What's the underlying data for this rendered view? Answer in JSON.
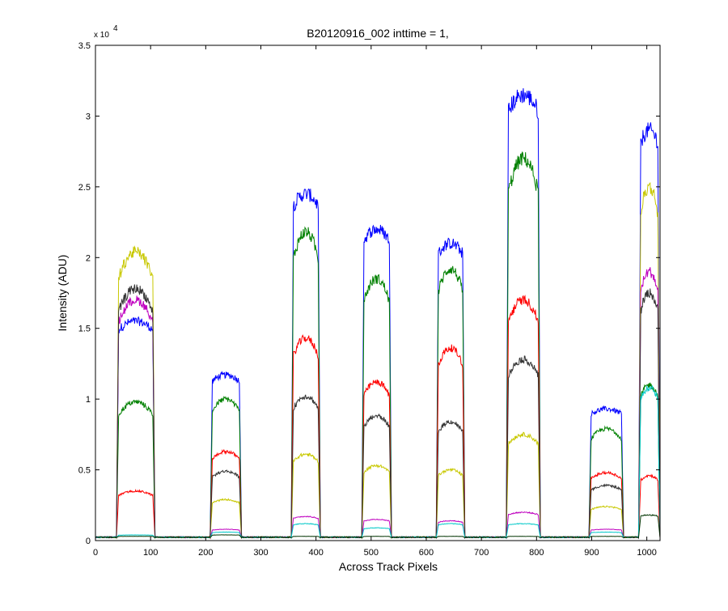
{
  "chart_data": {
    "type": "line",
    "title": "B20120916_002 inttime = 1,",
    "xlabel": "Across Track Pixels",
    "ylabel": "Intensity (ADU)",
    "xlim": [
      0,
      1024
    ],
    "ylim": [
      0,
      35000
    ],
    "y_exponent_label": "x 10",
    "y_exponent_power": "4",
    "xticks": [
      0,
      100,
      200,
      300,
      400,
      500,
      600,
      700,
      800,
      900,
      1000
    ],
    "yticks": [
      0,
      5000,
      10000,
      15000,
      20000,
      25000,
      30000,
      35000
    ],
    "ytick_labels": [
      "0",
      "0.5",
      "1",
      "1.5",
      "2",
      "2.5",
      "3",
      "3.5"
    ],
    "xtick_labels": [
      "0",
      "100",
      "200",
      "300",
      "400",
      "500",
      "600",
      "700",
      "800",
      "900",
      "1000"
    ],
    "grid": false,
    "legend": "none",
    "bands": [
      [
        38,
        108
      ],
      [
        208,
        265
      ],
      [
        355,
        408
      ],
      [
        483,
        537
      ],
      [
        618,
        670
      ],
      [
        745,
        807
      ],
      [
        895,
        958
      ],
      [
        985,
        1024
      ]
    ],
    "series": [
      {
        "color": "#0000ff",
        "levels": [
          15500,
          11700,
          24500,
          22000,
          21000,
          31500,
          9300,
          29000
        ],
        "shape": "flat"
      },
      {
        "color": "#008000",
        "levels": [
          9800,
          10000,
          21800,
          18500,
          19200,
          27000,
          7900,
          11000
        ],
        "shape": "dome"
      },
      {
        "color": "#ff0000",
        "levels": [
          3500,
          6300,
          14300,
          11200,
          13600,
          17000,
          4800,
          4600
        ],
        "shape": "dome"
      },
      {
        "color": "#c8c800",
        "levels": [
          20400,
          2900,
          6100,
          5300,
          5000,
          7500,
          2400,
          25000
        ],
        "shape": "dome"
      },
      {
        "color": "#bf00bf",
        "levels": [
          17000,
          800,
          1700,
          1500,
          1400,
          2000,
          800,
          19000
        ],
        "shape": "dome"
      },
      {
        "color": "#333333",
        "levels": [
          17800,
          4900,
          10200,
          8800,
          8400,
          12800,
          3900,
          17500
        ],
        "shape": "dome"
      },
      {
        "color": "#00c8c8",
        "levels": [
          400,
          600,
          1200,
          900,
          1200,
          1200,
          600,
          10800
        ],
        "shape": "dome"
      },
      {
        "color": "#003300",
        "levels": [
          300,
          400,
          300,
          300,
          300,
          300,
          300,
          1800
        ],
        "shape": "flat"
      }
    ]
  }
}
